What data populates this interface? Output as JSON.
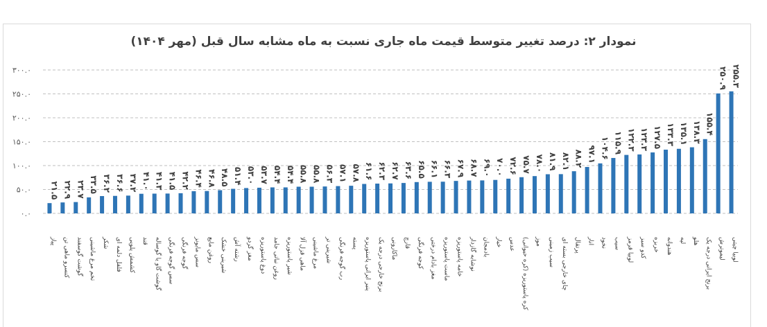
{
  "chart_data": {
    "type": "bar",
    "title": "نمودار ۲: درصد تغییر متوسط قیمت ماه جاری نسبت به ماه مشابه سال قبل (مهر ۱۴۰۴)",
    "xlabel": "",
    "ylabel": "",
    "ylim": [
      0,
      300
    ],
    "y_ticks": [
      {
        "value": 0,
        "label": "۰.۰"
      },
      {
        "value": 50,
        "label": "۵۰.۰"
      },
      {
        "value": 100,
        "label": "۱۰۰.۰"
      },
      {
        "value": 150,
        "label": "۱۵۰.۰"
      },
      {
        "value": 200,
        "label": "۲۰۰.۰"
      },
      {
        "value": 250,
        "label": "۲۵۰.۰"
      },
      {
        "value": 300,
        "label": "۳۰۰.۰"
      }
    ],
    "grid": "horizontal-dashed",
    "legend": "none",
    "bar_color": "#2e75b6",
    "categories": [
      "پیاز",
      "کنسرو ماهی تن",
      "گوشت گوسفند",
      "تخم مرغ ماشینی",
      "شکر",
      "فلفل دلمه ای",
      "کشمش پلویی",
      "قند",
      "گوشت گاو یا گوساله",
      "سس گوجه فرنگی",
      "گوجه فرنگی",
      "سس مایونز",
      "روغن مایع",
      "شیرینی خشک",
      "رشته آش",
      "مغز گردو",
      "دوغ پاستوریزه",
      "روغن نباتی جامد",
      "شیر پاستوریزه",
      "ماهی قزل آلا",
      "مرغ ماشینی",
      "شیرینی تر",
      "رب گوجه فرنگی",
      "پسته",
      "پنیر ایرانی پاستوریزه",
      "برنج خارجی درجه یک",
      "ماکارونی",
      "قارچ",
      "کوجه فرنگی",
      "مغز بادام درختی",
      "ماست پاستوریزه",
      "خامه پاستوریزه",
      "نوشابه گازدار",
      "بادمجان",
      "خیار",
      "عدس",
      "کره پاستوریزه (کره حیوانی)",
      "موز",
      "سیب زمینی",
      "چای خارجی بسته ای",
      "پرتقال",
      "انار",
      "نخود",
      "سیب",
      "لوبیا قرمز",
      "کدو سبز",
      "خربزه",
      "هندوانه",
      "لپه",
      "هلو",
      "برنج ایرانی درجه یک",
      "لیموترش",
      "لوبیا چیتی"
    ],
    "values": [
      21.5,
      22.9,
      23.7,
      33.5,
      36.2,
      36.6,
      37.2,
      41.0,
      41.3,
      41.5,
      42.2,
      46.4,
      46.8,
      48.5,
      51.4,
      53.0,
      53.7,
      54.4,
      54.4,
      55.8,
      55.8,
      56.3,
      57.1,
      57.8,
      61.6,
      62.3,
      62.7,
      63.6,
      65.5,
      66.1,
      66.3,
      67.9,
      68.7,
      69.0,
      70.0,
      72.6,
      75.7,
      78.0,
      81.9,
      82.1,
      88.2,
      97.1,
      104.6,
      115.9,
      122.3,
      123.3,
      127.5,
      133.3,
      135.1,
      138.3,
      155.4,
      250.9,
      255.3
    ],
    "value_labels": [
      "۲۱.۵",
      "۲۲.۹",
      "۲۳.۷",
      "۳۳.۵",
      "۳۶.۲",
      "۳۶.۶",
      "۳۷.۲",
      "۴۱.۰",
      "۴۱.۳",
      "۴۱.۵",
      "۴۲.۲",
      "۴۶.۴",
      "۴۶.۸",
      "۴۸.۵",
      "۵۱.۴",
      "۵۳.۰",
      "۵۳.۷",
      "۵۴.۴",
      "۵۴.۴",
      "۵۵.۸",
      "۵۵.۸",
      "۵۶.۳",
      "۵۷.۱",
      "۵۷.۸",
      "۶۱.۶",
      "۶۲.۳",
      "۶۲.۷",
      "۶۳.۶",
      "۶۵.۵",
      "۶۶.۱",
      "۶۶.۳",
      "۶۷.۹",
      "۶۸.۷",
      "۶۹.۰",
      "۷۰.۰",
      "۷۲.۶",
      "۷۵.۷",
      "۷۸.۰",
      "۸۱.۹",
      "۸۲.۱",
      "۸۸.۲",
      "۹۷.۱",
      "۱۰۴.۶",
      "۱۱۵.۹",
      "۱۲۲.۳",
      "۱۲۳.۳",
      "۱۲۷.۵",
      "۱۳۳.۳",
      "۱۳۵.۱",
      "۱۳۸.۳",
      "۱۵۵.۴",
      "۲۵۰.۹",
      "۲۵۵.۳"
    ]
  }
}
